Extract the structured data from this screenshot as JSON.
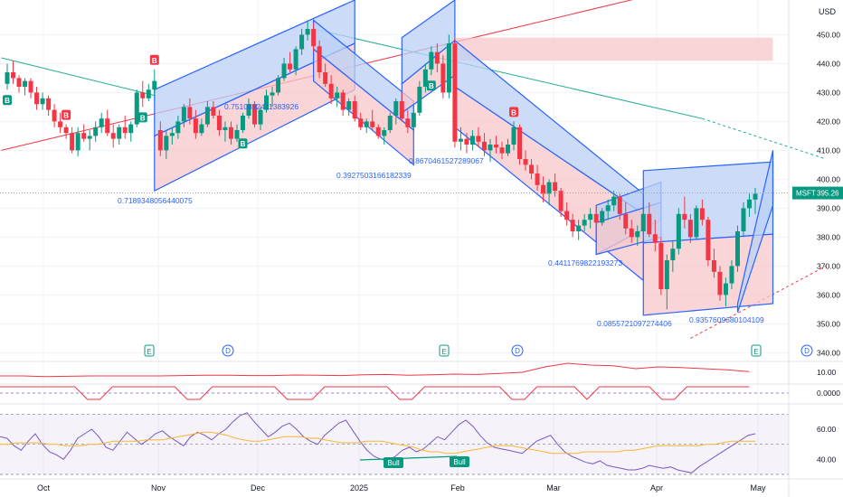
{
  "header": {
    "currency": "USD",
    "symbol": "MSFT"
  },
  "colors": {
    "up": "#089981",
    "down": "#f23645",
    "channel_blue": "#2962ff",
    "blue_fill": "#bbd0f6",
    "red_fill": "#f7c7ca",
    "teal_line": "#22ab94",
    "red_line": "#f23645",
    "grid": "#f0f3fa",
    "rsi_line": "#7e57c2",
    "rsi_ma": "#f7b731",
    "axis_text": "#131722"
  },
  "chart_data": [
    {
      "type": "candlestick",
      "panel": "price",
      "x_labels": [
        "Oct",
        "Nov",
        "Dec",
        "2025",
        "Feb",
        "Mar",
        "Apr",
        "May"
      ],
      "y_ticks": [
        340,
        350,
        360,
        370,
        380,
        390,
        400,
        410,
        420,
        430,
        440,
        450
      ],
      "ylim": [
        337,
        462
      ],
      "last_price": {
        "label": "MSFT",
        "value": "395.26"
      },
      "candles": [
        [
          0,
          433,
          440,
          431,
          437
        ],
        [
          1,
          437,
          441,
          433,
          435
        ],
        [
          2,
          435,
          436,
          430,
          432
        ],
        [
          3,
          432,
          435,
          429,
          434
        ],
        [
          4,
          434,
          435,
          428,
          430
        ],
        [
          5,
          430,
          432,
          424,
          426
        ],
        [
          6,
          426,
          430,
          424,
          428
        ],
        [
          7,
          428,
          429,
          422,
          424
        ],
        [
          8,
          424,
          426,
          418,
          420
        ],
        [
          9,
          420,
          423,
          416,
          418
        ],
        [
          10,
          418,
          419,
          414,
          416
        ],
        [
          11,
          416,
          418,
          409,
          410
        ],
        [
          12,
          410,
          418,
          408,
          416
        ],
        [
          13,
          416,
          419,
          413,
          414
        ],
        [
          14,
          414,
          417,
          410,
          415
        ],
        [
          15,
          415,
          420,
          413,
          418
        ],
        [
          16,
          418,
          423,
          416,
          421
        ],
        [
          17,
          421,
          424,
          415,
          416
        ],
        [
          18,
          416,
          419,
          411,
          414
        ],
        [
          19,
          414,
          419,
          412,
          418
        ],
        [
          20,
          418,
          422,
          414,
          416
        ],
        [
          21,
          416,
          420,
          413,
          419
        ],
        [
          22,
          419,
          431,
          418,
          430
        ],
        [
          23,
          430,
          434,
          425,
          428
        ],
        [
          24,
          428,
          433,
          427,
          431
        ],
        [
          25,
          431,
          438,
          428,
          434
        ],
        [
          26,
          417,
          420,
          408,
          410
        ],
        [
          27,
          410,
          417,
          407,
          415
        ],
        [
          28,
          415,
          418,
          412,
          416
        ],
        [
          29,
          416,
          422,
          414,
          420
        ],
        [
          30,
          420,
          426,
          418,
          425
        ],
        [
          31,
          425,
          428,
          419,
          421
        ],
        [
          32,
          421,
          424,
          414,
          416
        ],
        [
          33,
          416,
          421,
          415,
          419
        ],
        [
          34,
          419,
          427,
          418,
          425
        ],
        [
          35,
          425,
          427,
          421,
          422
        ],
        [
          36,
          422,
          424,
          415,
          417
        ],
        [
          37,
          417,
          420,
          413,
          418
        ],
        [
          38,
          418,
          420,
          412,
          414
        ],
        [
          39,
          414,
          419,
          413,
          417
        ],
        [
          40,
          417,
          423,
          416,
          422
        ],
        [
          41,
          422,
          428,
          421,
          426
        ],
        [
          42,
          426,
          427,
          418,
          419
        ],
        [
          43,
          419,
          425,
          417,
          424
        ],
        [
          44,
          424,
          431,
          423,
          429
        ],
        [
          45,
          429,
          432,
          425,
          430
        ],
        [
          46,
          430,
          436,
          429,
          435
        ],
        [
          47,
          435,
          442,
          434,
          440
        ],
        [
          48,
          440,
          444,
          437,
          438
        ],
        [
          49,
          438,
          446,
          436,
          445
        ],
        [
          50,
          445,
          452,
          443,
          450
        ],
        [
          51,
          450,
          455,
          448,
          452
        ],
        [
          52,
          452,
          454,
          444,
          446
        ],
        [
          53,
          446,
          448,
          435,
          437
        ],
        [
          54,
          437,
          440,
          432,
          433
        ],
        [
          55,
          433,
          436,
          426,
          428
        ],
        [
          56,
          428,
          432,
          425,
          430
        ],
        [
          57,
          430,
          431,
          422,
          424
        ],
        [
          58,
          424,
          428,
          422,
          427
        ],
        [
          59,
          427,
          429,
          420,
          421
        ],
        [
          60,
          421,
          423,
          417,
          418
        ],
        [
          61,
          418,
          421,
          416,
          420
        ],
        [
          62,
          420,
          424,
          417,
          418
        ],
        [
          63,
          418,
          419,
          414,
          415
        ],
        [
          64,
          415,
          418,
          412,
          417
        ],
        [
          65,
          417,
          423,
          416,
          422
        ],
        [
          66,
          422,
          428,
          419,
          427
        ],
        [
          67,
          427,
          430,
          420,
          421
        ],
        [
          68,
          421,
          424,
          416,
          418
        ],
        [
          69,
          418,
          425,
          417,
          423
        ],
        [
          70,
          423,
          434,
          422,
          432
        ],
        [
          71,
          432,
          440,
          430,
          438
        ],
        [
          72,
          438,
          446,
          436,
          444
        ],
        [
          73,
          444,
          447,
          437,
          440
        ],
        [
          74,
          440,
          443,
          428,
          430
        ],
        [
          75,
          430,
          450,
          428,
          447
        ],
        [
          76,
          447,
          449,
          411,
          413
        ],
        [
          77,
          413,
          418,
          410,
          414
        ],
        [
          78,
          414,
          416,
          409,
          412
        ],
        [
          79,
          412,
          417,
          410,
          415
        ],
        [
          80,
          415,
          418,
          411,
          413
        ],
        [
          81,
          413,
          416,
          408,
          410
        ],
        [
          82,
          410,
          414,
          406,
          412
        ],
        [
          83,
          412,
          415,
          409,
          411
        ],
        [
          84,
          411,
          413,
          407,
          409
        ],
        [
          85,
          409,
          414,
          408,
          412
        ],
        [
          86,
          412,
          420,
          410,
          418
        ],
        [
          87,
          418,
          419,
          405,
          407
        ],
        [
          88,
          407,
          410,
          403,
          405
        ],
        [
          89,
          405,
          407,
          400,
          402
        ],
        [
          90,
          402,
          405,
          396,
          398
        ],
        [
          91,
          398,
          401,
          392,
          395
        ],
        [
          92,
          395,
          400,
          391,
          399
        ],
        [
          93,
          399,
          402,
          394,
          396
        ],
        [
          94,
          396,
          397,
          387,
          389
        ],
        [
          95,
          389,
          392,
          384,
          386
        ],
        [
          96,
          386,
          388,
          380,
          382
        ],
        [
          97,
          382,
          386,
          379,
          384
        ],
        [
          98,
          384,
          388,
          382,
          386
        ],
        [
          99,
          386,
          390,
          383,
          388
        ],
        [
          100,
          388,
          391,
          384,
          385
        ],
        [
          101,
          385,
          390,
          384,
          389
        ],
        [
          102,
          389,
          393,
          386,
          391
        ],
        [
          103,
          391,
          396,
          389,
          394
        ],
        [
          104,
          394,
          395,
          386,
          388
        ],
        [
          105,
          388,
          392,
          381,
          383
        ],
        [
          106,
          383,
          386,
          378,
          380
        ],
        [
          107,
          380,
          384,
          377,
          382
        ],
        [
          108,
          382,
          390,
          381,
          388
        ],
        [
          109,
          388,
          392,
          380,
          381
        ],
        [
          110,
          381,
          386,
          375,
          378
        ],
        [
          111,
          378,
          380,
          360,
          362
        ],
        [
          112,
          362,
          374,
          355,
          372
        ],
        [
          113,
          372,
          379,
          368,
          376
        ],
        [
          114,
          376,
          390,
          374,
          388
        ],
        [
          115,
          388,
          394,
          383,
          386
        ],
        [
          116,
          386,
          388,
          378,
          380
        ],
        [
          117,
          380,
          391,
          379,
          390
        ],
        [
          118,
          390,
          393,
          384,
          386
        ],
        [
          119,
          386,
          387,
          370,
          372
        ],
        [
          120,
          372,
          376,
          366,
          368
        ],
        [
          121,
          368,
          370,
          358,
          360
        ],
        [
          122,
          360,
          366,
          356,
          364
        ],
        [
          123,
          364,
          372,
          362,
          370
        ],
        [
          124,
          370,
          384,
          368,
          382
        ],
        [
          125,
          382,
          392,
          380,
          390
        ],
        [
          126,
          390,
          395,
          387,
          393
        ],
        [
          127,
          393,
          397,
          388,
          395
        ]
      ]
    },
    {
      "type": "line",
      "panel": "volatility",
      "y_ticks": [
        "10.00"
      ],
      "values": [
        10,
        10,
        9.6,
        9.8,
        10,
        10,
        10,
        10,
        10.2,
        10.4,
        10.4,
        10.2,
        10.2,
        10.5,
        10.4,
        10.2,
        10.6,
        10.8,
        10.4,
        10.6,
        11,
        10.8,
        11.4,
        12,
        15,
        17,
        16,
        15.6,
        14,
        15,
        14.6,
        14,
        13.4,
        12.4
      ]
    },
    {
      "type": "line",
      "panel": "signal",
      "y_ticks": [
        "0.0000"
      ],
      "values": [
        1,
        1,
        1,
        1,
        1,
        1,
        1,
        0,
        0,
        1,
        1,
        1,
        1,
        1,
        1,
        0,
        0,
        1,
        1,
        1,
        1,
        1,
        1,
        0,
        0,
        0,
        1,
        1,
        1,
        1,
        1,
        1,
        0,
        0,
        1,
        1,
        1,
        1,
        1,
        1,
        1,
        0,
        0,
        1,
        1,
        1,
        1,
        0,
        1,
        1,
        1,
        1,
        1,
        0,
        0,
        1,
        1,
        1,
        1,
        1,
        1
      ]
    },
    {
      "type": "line",
      "panel": "rsi",
      "y_ticks": [
        40,
        60
      ],
      "rsi": [
        55,
        54,
        49,
        46,
        52,
        57,
        50,
        45,
        43,
        40,
        46,
        54,
        57,
        60,
        55,
        48,
        46,
        52,
        58,
        54,
        50,
        53,
        57,
        59,
        55,
        52,
        49,
        55,
        58,
        56,
        53,
        57,
        60,
        65,
        69,
        71,
        65,
        60,
        55,
        58,
        62,
        64,
        60,
        55,
        52,
        50,
        56,
        60,
        64,
        66,
        59,
        52,
        46,
        42,
        40,
        39,
        42,
        46,
        48,
        45,
        47,
        51,
        55,
        53,
        58,
        63,
        66,
        62,
        56,
        51,
        48,
        47,
        46,
        45,
        44,
        48,
        52,
        54,
        56,
        50,
        45,
        42,
        40,
        38,
        37,
        39,
        36,
        35,
        34,
        33,
        33,
        34,
        36,
        35,
        34,
        35,
        33,
        32,
        31,
        35,
        38,
        41,
        44,
        47,
        50,
        53,
        56,
        57
      ],
      "rsi_ma": [
        50,
        50,
        51,
        51,
        51,
        51,
        50,
        50,
        49,
        49,
        49,
        50,
        50,
        51,
        52,
        52,
        52,
        52,
        53,
        53,
        53,
        54,
        55,
        56,
        57,
        58,
        58,
        57,
        56,
        54,
        53,
        52,
        52,
        53,
        54,
        55,
        55,
        55,
        54,
        54,
        53,
        52,
        51,
        51,
        51,
        52,
        52,
        52,
        51,
        50,
        49,
        48,
        46,
        45,
        45,
        44,
        44,
        45,
        46,
        47,
        48,
        49,
        49,
        49,
        48,
        47,
        46,
        45,
        44,
        44,
        44,
        44,
        45,
        45,
        45,
        45,
        45,
        46,
        46,
        47,
        48,
        49,
        49,
        49,
        49,
        49,
        49,
        50,
        50,
        51,
        52,
        52,
        52,
        52
      ]
    }
  ],
  "channel_labels": [
    "0.7189348056440075",
    "0.7510892411383926",
    "0.3927503166182339",
    "0.8670461527289067",
    "0.4411769822193273",
    "0.0855721097274406",
    "0.9357609680104109"
  ],
  "markers": {
    "b_label": "B",
    "earnings": "E",
    "dividend": "D",
    "bull": "Bull"
  }
}
